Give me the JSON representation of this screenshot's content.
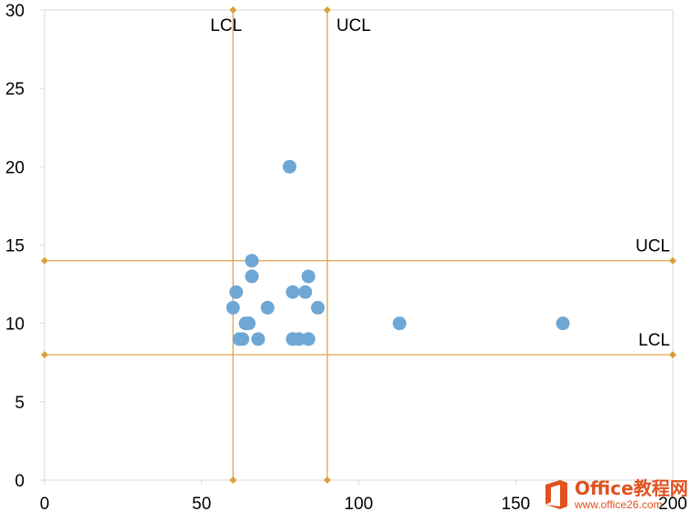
{
  "chart_data": {
    "type": "scatter",
    "title": "",
    "xlabel": "",
    "ylabel": "",
    "xlim": [
      0,
      200
    ],
    "ylim": [
      0,
      30
    ],
    "x_ticks": [
      "0",
      "50",
      "100",
      "150",
      "200"
    ],
    "y_ticks": [
      "0",
      "5",
      "10",
      "15",
      "20",
      "25",
      "30"
    ],
    "grid": false,
    "series": [
      {
        "points": [
          {
            "x": 78,
            "y": 20
          },
          {
            "x": 66,
            "y": 14
          },
          {
            "x": 66,
            "y": 13
          },
          {
            "x": 84,
            "y": 13
          },
          {
            "x": 61,
            "y": 12
          },
          {
            "x": 79,
            "y": 12
          },
          {
            "x": 83,
            "y": 12
          },
          {
            "x": 60,
            "y": 11
          },
          {
            "x": 71,
            "y": 11
          },
          {
            "x": 87,
            "y": 11
          },
          {
            "x": 64,
            "y": 10
          },
          {
            "x": 65,
            "y": 10
          },
          {
            "x": 113,
            "y": 10
          },
          {
            "x": 165,
            "y": 10
          },
          {
            "x": 62,
            "y": 9
          },
          {
            "x": 63,
            "y": 9
          },
          {
            "x": 68,
            "y": 9
          },
          {
            "x": 79,
            "y": 9
          },
          {
            "x": 81,
            "y": 9
          },
          {
            "x": 84,
            "y": 9
          }
        ]
      }
    ],
    "control_lines": {
      "vertical": [
        {
          "label": "LCL",
          "x": 60
        },
        {
          "label": "UCL",
          "x": 90
        }
      ],
      "horizontal": [
        {
          "label": "UCL",
          "y": 14
        },
        {
          "label": "LCL",
          "y": 8
        }
      ]
    },
    "colors": {
      "marker": "#6fa7d4",
      "control_line": "#e0a34a",
      "axis": "#d9d9d9",
      "text": "#000000"
    }
  },
  "watermark": {
    "title": "Office教程网",
    "url": "www.office26.com",
    "icon": "office-logo-icon"
  }
}
